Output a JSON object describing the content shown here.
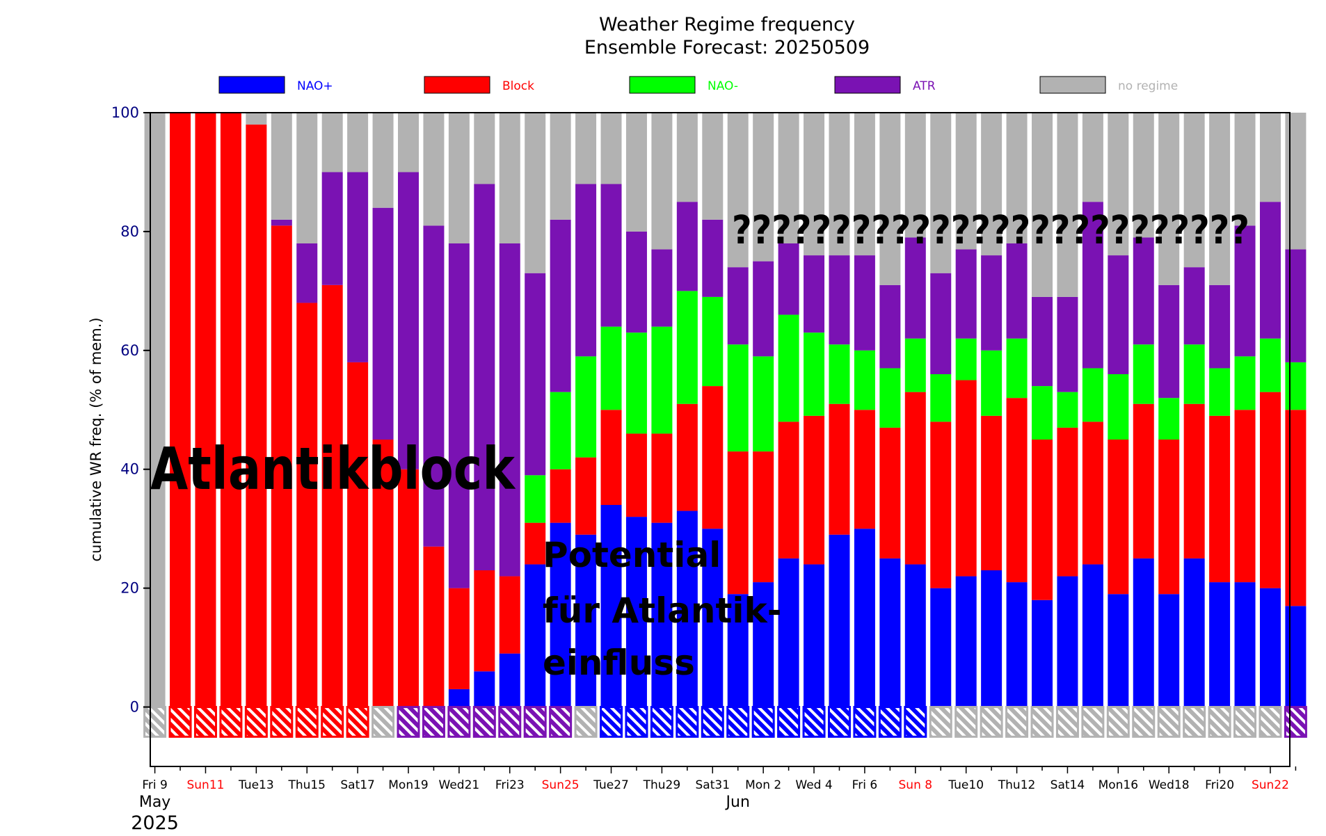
{
  "title": "Weather Regime frequency",
  "subtitle": "Ensemble Forecast: 20250509",
  "legend": [
    {
      "name": "NAO+",
      "color": "#0000ff"
    },
    {
      "name": "Block",
      "color": "#ff0000"
    },
    {
      "name": "NAO-",
      "color": "#00ff00"
    },
    {
      "name": "ATR",
      "color": "#7a12b3"
    },
    {
      "name": "no regime",
      "color": "#b2b2b2"
    }
  ],
  "annotations": {
    "main": "Atlantikblock",
    "secondary_lines": [
      "Potential",
      "für Atlantik-",
      "einfluss"
    ],
    "questions": "??????????????????????????"
  },
  "chart_data": {
    "type": "bar",
    "stacked": true,
    "ylabel": "cumulative WR freq. (% of mem.)",
    "ylim": [
      -10,
      100
    ],
    "yticks": [
      0,
      20,
      40,
      60,
      80,
      100
    ],
    "x_tick_labels": [
      {
        "label": "Fri 9",
        "weekend": false
      },
      {
        "label": "Sun11",
        "weekend": true
      },
      {
        "label": "Tue13",
        "weekend": false
      },
      {
        "label": "Thu15",
        "weekend": false
      },
      {
        "label": "Sat17",
        "weekend": false
      },
      {
        "label": "Mon19",
        "weekend": false
      },
      {
        "label": "Wed21",
        "weekend": false
      },
      {
        "label": "Fri23",
        "weekend": false
      },
      {
        "label": "Sun25",
        "weekend": true
      },
      {
        "label": "Tue27",
        "weekend": false
      },
      {
        "label": "Thu29",
        "weekend": false
      },
      {
        "label": "Sat31",
        "weekend": false
      },
      {
        "label": "Mon 2",
        "weekend": false
      },
      {
        "label": "Wed 4",
        "weekend": false
      },
      {
        "label": "Fri 6",
        "weekend": false
      },
      {
        "label": "Sun 8",
        "weekend": true
      },
      {
        "label": "Tue10",
        "weekend": false
      },
      {
        "label": "Thu12",
        "weekend": false
      },
      {
        "label": "Sat14",
        "weekend": false
      },
      {
        "label": "Mon16",
        "weekend": false
      },
      {
        "label": "Wed18",
        "weekend": false
      },
      {
        "label": "Fri20",
        "weekend": false
      },
      {
        "label": "Sun22",
        "weekend": true
      }
    ],
    "month_labels": [
      "May",
      "Jun"
    ],
    "year_label": "2025",
    "series": [
      {
        "name": "NAO+",
        "color": "#0000ff",
        "values": [
          0,
          0,
          0,
          0,
          0,
          0,
          0,
          0,
          0,
          0,
          0,
          0,
          3,
          6,
          9,
          24,
          31,
          29,
          34,
          32,
          31,
          33,
          30,
          19,
          21,
          25,
          24,
          29,
          30,
          25,
          24,
          20,
          22,
          23,
          21,
          18,
          22,
          24,
          19,
          25,
          19,
          25,
          21,
          21,
          20,
          17
        ]
      },
      {
        "name": "Block",
        "color": "#ff0000",
        "values": [
          0,
          100,
          100,
          100,
          98,
          81,
          68,
          71,
          58,
          45,
          40,
          27,
          17,
          17,
          13,
          7,
          9,
          13,
          16,
          14,
          15,
          18,
          24,
          24,
          22,
          23,
          25,
          22,
          20,
          22,
          29,
          28,
          33,
          26,
          31,
          27,
          25,
          24,
          26,
          26,
          26,
          26,
          28,
          29,
          33,
          33
        ]
      },
      {
        "name": "NAO-",
        "color": "#00ff00",
        "values": [
          0,
          0,
          0,
          0,
          0,
          0,
          0,
          0,
          0,
          0,
          0,
          0,
          0,
          0,
          0,
          8,
          13,
          17,
          14,
          17,
          18,
          19,
          15,
          18,
          16,
          18,
          14,
          10,
          10,
          10,
          9,
          8,
          7,
          11,
          10,
          9,
          6,
          9,
          11,
          10,
          7,
          10,
          8,
          9,
          9,
          8
        ]
      },
      {
        "name": "ATR",
        "color": "#7a12b3",
        "values": [
          0,
          0,
          0,
          0,
          0,
          1,
          10,
          19,
          32,
          39,
          50,
          54,
          58,
          65,
          56,
          34,
          29,
          29,
          24,
          17,
          13,
          15,
          13,
          13,
          16,
          12,
          13,
          15,
          16,
          14,
          17,
          17,
          15,
          16,
          16,
          15,
          16,
          28,
          20,
          18,
          19,
          13,
          14,
          22,
          23,
          19
        ]
      },
      {
        "name": "no regime",
        "color": "#b2b2b2",
        "values": [
          100,
          0,
          0,
          0,
          2,
          18,
          22,
          10,
          10,
          16,
          10,
          19,
          22,
          12,
          22,
          27,
          18,
          12,
          12,
          20,
          23,
          15,
          18,
          26,
          25,
          22,
          24,
          24,
          24,
          29,
          21,
          27,
          23,
          24,
          22,
          31,
          31,
          15,
          24,
          21,
          29,
          26,
          29,
          19,
          15,
          23
        ]
      }
    ],
    "observed_regime_colors": [
      "#b2b2b2",
      "#ff0000",
      "#ff0000",
      "#ff0000",
      "#ff0000",
      "#ff0000",
      "#ff0000",
      "#ff0000",
      "#ff0000",
      "#b2b2b2",
      "#7a12b3",
      "#7a12b3",
      "#7a12b3",
      "#7a12b3",
      "#7a12b3",
      "#7a12b3",
      "#7a12b3",
      "#b2b2b2",
      "#0000ff",
      "#0000ff",
      "#0000ff",
      "#0000ff",
      "#0000ff",
      "#0000ff",
      "#0000ff",
      "#0000ff",
      "#0000ff",
      "#0000ff",
      "#0000ff",
      "#0000ff",
      "#0000ff",
      "#b2b2b2",
      "#b2b2b2",
      "#b2b2b2",
      "#b2b2b2",
      "#b2b2b2",
      "#b2b2b2",
      "#b2b2b2",
      "#b2b2b2",
      "#b2b2b2",
      "#b2b2b2",
      "#b2b2b2",
      "#b2b2b2",
      "#b2b2b2",
      "#b2b2b2",
      "#7a12b3"
    ]
  }
}
